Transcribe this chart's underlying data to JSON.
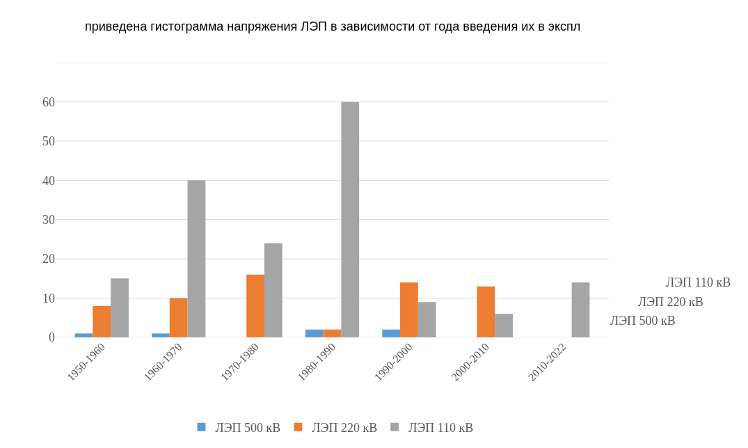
{
  "chart_data": {
    "type": "bar",
    "annotations": [
      "приведена гистограмма напряжения ЛЭП в зависимости от года введения их в экспл"
    ],
    "categories": [
      "1950-1960",
      "1960-1970",
      "1970-1980",
      "1980-1990",
      "1990-2000",
      "2000-2010",
      "2010-2022"
    ],
    "series": [
      {
        "name": "ЛЭП 500 кВ",
        "color": "#5b9bd5",
        "values": [
          1,
          1,
          null,
          2,
          2,
          null,
          null
        ]
      },
      {
        "name": "ЛЭП 220 кВ",
        "color": "#ed7d31",
        "values": [
          8,
          10,
          16,
          2,
          14,
          13,
          null
        ]
      },
      {
        "name": "ЛЭП 110 кВ",
        "color": "#a5a5a5",
        "values": [
          15,
          40,
          24,
          60,
          9,
          6,
          14
        ]
      }
    ],
    "ylim": [
      0,
      70
    ],
    "yticks": [
      0,
      10,
      20,
      30,
      40,
      50,
      60,
      {
        "value": 70,
        "label": null
      }
    ],
    "grid": "y",
    "legend": "bottom"
  }
}
